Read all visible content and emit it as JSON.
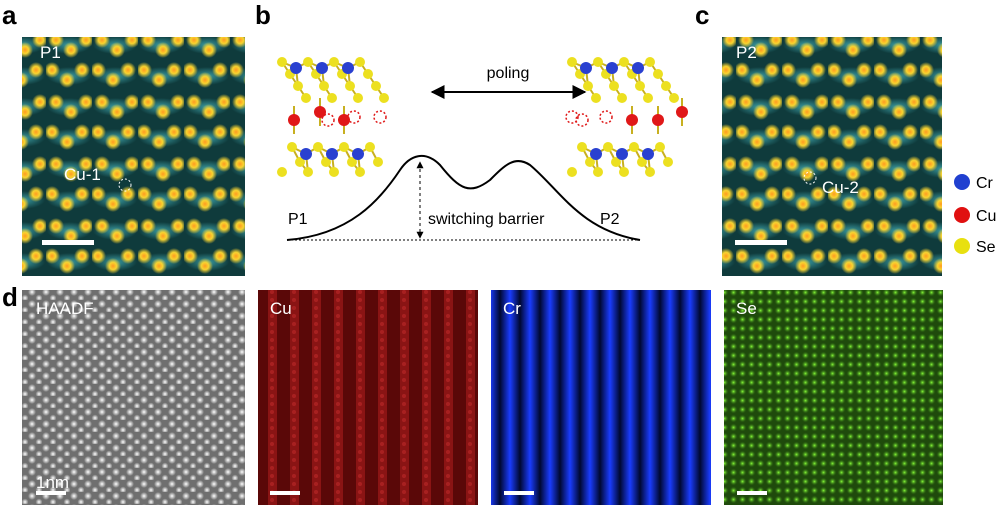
{
  "panel_a": {
    "label": "a",
    "title": "P1",
    "site": "Cu-1"
  },
  "panel_b": {
    "label": "b",
    "arrow": "poling",
    "barrier": "switching barrier",
    "left": "P1",
    "right": "P2"
  },
  "panel_c": {
    "label": "c",
    "title": "P2",
    "site": "Cu-2"
  },
  "legend": [
    "Cr",
    "Cu",
    "Se"
  ],
  "panel_d": {
    "label": "d",
    "maps": [
      "HAADF",
      "Cu",
      "Cr",
      "Se"
    ],
    "scale": "1nm"
  }
}
